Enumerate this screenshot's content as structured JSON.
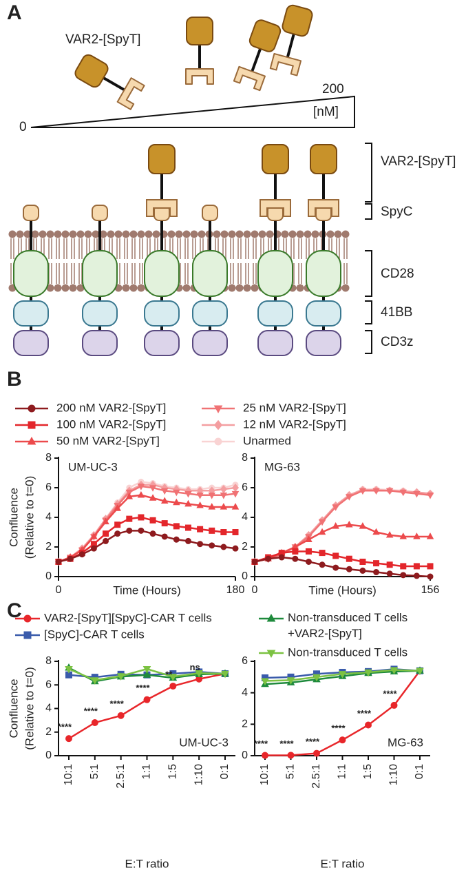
{
  "panel_a": {
    "label": "A",
    "molecule_label": "VAR2-[SpyT]",
    "gradient_max": 200,
    "gradient_unit": "[nM]",
    "gradient_min": 0,
    "domains": [
      "VAR2-[SpyT]",
      "SpyC",
      "CD28",
      "41BB",
      "CD3z"
    ]
  },
  "panel_labels": [
    "B",
    "C"
  ],
  "chart_data": [
    {
      "type": "line",
      "title": "UM-UC-3",
      "xlabel": "Time (Hours)",
      "ylabel": "Confluence\n(Relative to t=0)",
      "x": [
        0,
        12,
        24,
        36,
        48,
        60,
        72,
        84,
        96,
        108,
        120,
        132,
        144,
        156,
        168,
        180
      ],
      "xlim": [
        0,
        180
      ],
      "xticks": [
        0,
        180
      ],
      "ylim": [
        0,
        8
      ],
      "yticks": [
        0,
        2,
        4,
        6,
        8
      ],
      "series": [
        {
          "name": "200 nM VAR2-[SpyT]",
          "color": "#8e1b1e",
          "marker": "circle",
          "values": [
            1,
            1.2,
            1.5,
            1.9,
            2.4,
            2.9,
            3.1,
            3.1,
            2.9,
            2.7,
            2.5,
            2.4,
            2.2,
            2.1,
            2.0,
            1.9
          ]
        },
        {
          "name": "100 nM VAR2-[SpyT]",
          "color": "#e3262b",
          "marker": "square",
          "values": [
            1,
            1.2,
            1.6,
            2.2,
            2.9,
            3.5,
            3.9,
            4.0,
            3.8,
            3.6,
            3.4,
            3.3,
            3.2,
            3.1,
            3.0,
            3.0
          ]
        },
        {
          "name": "50 nM VAR2-[SpyT]",
          "color": "#ec4a4c",
          "marker": "triangle",
          "values": [
            1,
            1.3,
            1.8,
            2.7,
            3.7,
            4.6,
            5.4,
            5.5,
            5.3,
            5.1,
            5.0,
            4.9,
            4.8,
            4.7,
            4.7,
            4.7
          ]
        },
        {
          "name": "25 nM VAR2-[SpyT]",
          "color": "#f07274",
          "marker": "triangle-down",
          "values": [
            1,
            1.3,
            1.8,
            2.7,
            3.8,
            4.8,
            5.7,
            6.1,
            6.0,
            5.8,
            5.7,
            5.6,
            5.5,
            5.5,
            5.5,
            5.6
          ]
        },
        {
          "name": "12 nM VAR2-[SpyT]",
          "color": "#f49ea0",
          "marker": "diamond",
          "values": [
            1,
            1.3,
            1.9,
            2.8,
            3.9,
            4.9,
            5.8,
            6.2,
            6.2,
            6.0,
            5.9,
            5.8,
            5.8,
            5.8,
            5.9,
            6.0
          ]
        },
        {
          "name": "Unarmed",
          "color": "#f9d3d3",
          "marker": "circle",
          "values": [
            1,
            1.3,
            1.9,
            2.8,
            3.9,
            5.0,
            6.0,
            6.4,
            6.3,
            6.1,
            6.0,
            5.9,
            5.9,
            6.0,
            6.0,
            6.2
          ]
        }
      ]
    },
    {
      "type": "line",
      "title": "MG-63",
      "xlabel": "Time (Hours)",
      "x": [
        0,
        12,
        24,
        36,
        48,
        60,
        72,
        84,
        96,
        108,
        120,
        132,
        144,
        156
      ],
      "xlim": [
        0,
        156
      ],
      "xticks": [
        0,
        156
      ],
      "ylim": [
        0,
        8
      ],
      "yticks": [
        0,
        2,
        4,
        6,
        8
      ],
      "series": [
        {
          "color": "#8e1b1e",
          "marker": "circle",
          "values": [
            1,
            1.2,
            1.3,
            1.2,
            1.0,
            0.8,
            0.6,
            0.5,
            0.4,
            0.3,
            0.2,
            0.1,
            0.05,
            0
          ]
        },
        {
          "color": "#e3262b",
          "marker": "square",
          "values": [
            1,
            1.3,
            1.6,
            1.7,
            1.7,
            1.6,
            1.4,
            1.2,
            1.0,
            0.9,
            0.8,
            0.7,
            0.7,
            0.7
          ]
        },
        {
          "color": "#ec4a4c",
          "marker": "triangle",
          "values": [
            1,
            1.2,
            1.6,
            2.0,
            2.5,
            3.0,
            3.4,
            3.5,
            3.4,
            3.0,
            2.8,
            2.7,
            2.7,
            2.7
          ]
        },
        {
          "color": "#f07274",
          "marker": "triangle-down",
          "values": [
            1,
            1.2,
            1.5,
            2.0,
            2.7,
            3.7,
            4.7,
            5.4,
            5.8,
            5.8,
            5.8,
            5.7,
            5.6,
            5.5
          ]
        },
        {
          "color": "#f49ea0",
          "marker": "diamond",
          "values": [
            1,
            1.2,
            1.5,
            2.0,
            2.8,
            3.8,
            4.8,
            5.5,
            5.85,
            5.85,
            5.8,
            5.75,
            5.7,
            5.6
          ]
        },
        {
          "color": "#f9d3d3",
          "marker": "circle",
          "values": [
            1,
            1.2,
            1.5,
            2.0,
            2.8,
            3.8,
            4.8,
            5.5,
            5.9,
            5.9,
            5.85,
            5.8,
            5.7,
            5.6
          ]
        }
      ]
    },
    {
      "type": "line",
      "title": "UM-UC-3",
      "xlabel": "E:T ratio",
      "ylabel": "Confluence\n(Relative to t=0)",
      "categories": [
        "10:1",
        "5:1",
        "2.5:1",
        "1:1",
        "1:5",
        "1:10",
        "0:1"
      ],
      "ylim": [
        0,
        8
      ],
      "yticks": [
        0,
        2,
        4,
        6,
        8
      ],
      "significance": [
        "****",
        "****",
        "****",
        "****",
        "**",
        "ns",
        null
      ],
      "series": [
        {
          "name": "VAR2-[SpyT][SpyC]-CAR T cells",
          "color": "#e8262a",
          "marker": "circle",
          "values": [
            1.45,
            2.8,
            3.4,
            4.75,
            5.9,
            6.5,
            6.95
          ]
        },
        {
          "name": "[SpyC]-CAR T cells",
          "color": "#3a5bab",
          "marker": "square",
          "values": [
            6.85,
            6.65,
            6.9,
            6.85,
            6.95,
            7.1,
            6.95
          ]
        },
        {
          "name": "Non-transduced T cells\n+VAR2-[SpyT]",
          "color": "#1e8a3c",
          "marker": "triangle",
          "values": [
            7.45,
            6.3,
            6.7,
            6.85,
            6.6,
            6.9,
            6.95
          ]
        },
        {
          "name": "Non-transduced T cells",
          "color": "#7cc242",
          "marker": "triangle-down",
          "values": [
            7.35,
            6.4,
            6.75,
            7.35,
            6.7,
            7.0,
            6.95
          ]
        }
      ]
    },
    {
      "type": "line",
      "title": "MG-63",
      "xlabel": "E:T ratio",
      "categories": [
        "10:1",
        "5:1",
        "2.5:1",
        "1:1",
        "1:5",
        "1:10",
        "0:1"
      ],
      "ylim": [
        0,
        6
      ],
      "yticks": [
        0,
        2,
        4,
        6
      ],
      "significance": [
        "****",
        "****",
        "****",
        "****",
        "****",
        "****",
        null
      ],
      "series": [
        {
          "color": "#e8262a",
          "marker": "circle",
          "values": [
            0.02,
            0.03,
            0.15,
            1.0,
            1.95,
            3.2,
            5.4
          ]
        },
        {
          "color": "#3a5bab",
          "marker": "square",
          "values": [
            4.95,
            5.0,
            5.2,
            5.3,
            5.35,
            5.5,
            5.4
          ]
        },
        {
          "color": "#1e8a3c",
          "marker": "triangle",
          "values": [
            4.55,
            4.65,
            4.85,
            5.05,
            5.25,
            5.35,
            5.4
          ]
        },
        {
          "color": "#7cc242",
          "marker": "triangle-down",
          "values": [
            4.75,
            4.8,
            5.0,
            5.2,
            5.3,
            5.45,
            5.4
          ]
        }
      ]
    }
  ]
}
